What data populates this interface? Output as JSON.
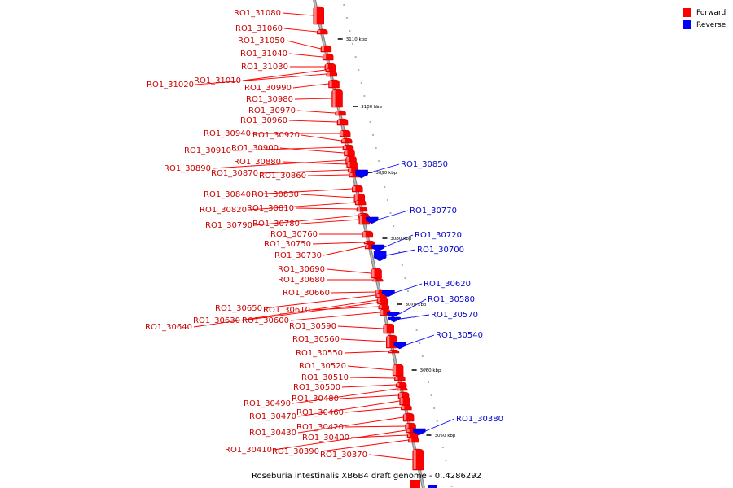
{
  "legend": {
    "forward_label": "Forward",
    "reverse_label": "Reverse",
    "forward_color": "#ff0000",
    "reverse_color": "#0000ff"
  },
  "caption": "Roseburia intestinalis XB6B4 draft genome - 0..4286292",
  "backbone": {
    "ticks": [
      {
        "pos": 3110,
        "label": "3110 kbp"
      },
      {
        "pos": 3100,
        "label": "3100 kbp"
      },
      {
        "pos": 3090,
        "label": "3090 kbp"
      },
      {
        "pos": 3080,
        "label": "3080 kbp"
      },
      {
        "pos": 3070,
        "label": "3070 kbp"
      },
      {
        "pos": 3060,
        "label": "3060 kbp"
      },
      {
        "pos": 3050,
        "label": "3050 kbp"
      }
    ]
  },
  "forward_genes": [
    "RO1_31080",
    "RO1_31060",
    "RO1_31050",
    "RO1_31040",
    "RO1_31030",
    "RO1_31020",
    "RO1_31010",
    "RO1_30990",
    "RO1_30980",
    "RO1_30970",
    "RO1_30960",
    "RO1_30940",
    "RO1_30920",
    "RO1_30910",
    "RO1_30900",
    "RO1_30890",
    "RO1_30880",
    "RO1_30870",
    "RO1_30860",
    "RO1_30840",
    "RO1_30830",
    "RO1_30820",
    "RO1_30810",
    "RO1_30790",
    "RO1_30780",
    "RO1_30760",
    "RO1_30750",
    "RO1_30730",
    "RO1_30690",
    "RO1_30680",
    "RO1_30660",
    "RO1_30650",
    "RO1_30640",
    "RO1_30630",
    "RO1_30610",
    "RO1_30600",
    "RO1_30590",
    "RO1_30560",
    "RO1_30550",
    "RO1_30520",
    "RO1_30510",
    "RO1_30500",
    "RO1_30490",
    "RO1_30480",
    "RO1_30470",
    "RO1_30460",
    "RO1_30430",
    "RO1_30420",
    "RO1_30410",
    "RO1_30400",
    "RO1_30390",
    "RO1_30370"
  ],
  "reverse_genes": [
    "RO1_30850",
    "RO1_30770",
    "RO1_30720",
    "RO1_30700",
    "RO1_30620",
    "RO1_30580",
    "RO1_30570",
    "RO1_30540",
    "RO1_30380"
  ]
}
